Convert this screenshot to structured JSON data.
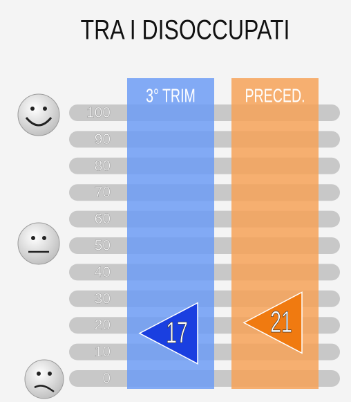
{
  "chart_data": {
    "type": "indicator",
    "title": "TRA I DISOCCUPATI",
    "categories": [
      "3° TRIM",
      "PRECED."
    ],
    "values": [
      17,
      21
    ],
    "colors": [
      "#1a3fe0",
      "#f07a10"
    ],
    "column_colors": [
      "#6d9cf5",
      "#f6a258"
    ],
    "ylim": [
      0,
      100
    ],
    "yticks": [
      0,
      10,
      20,
      30,
      40,
      50,
      60,
      70,
      80,
      90,
      100
    ]
  }
}
